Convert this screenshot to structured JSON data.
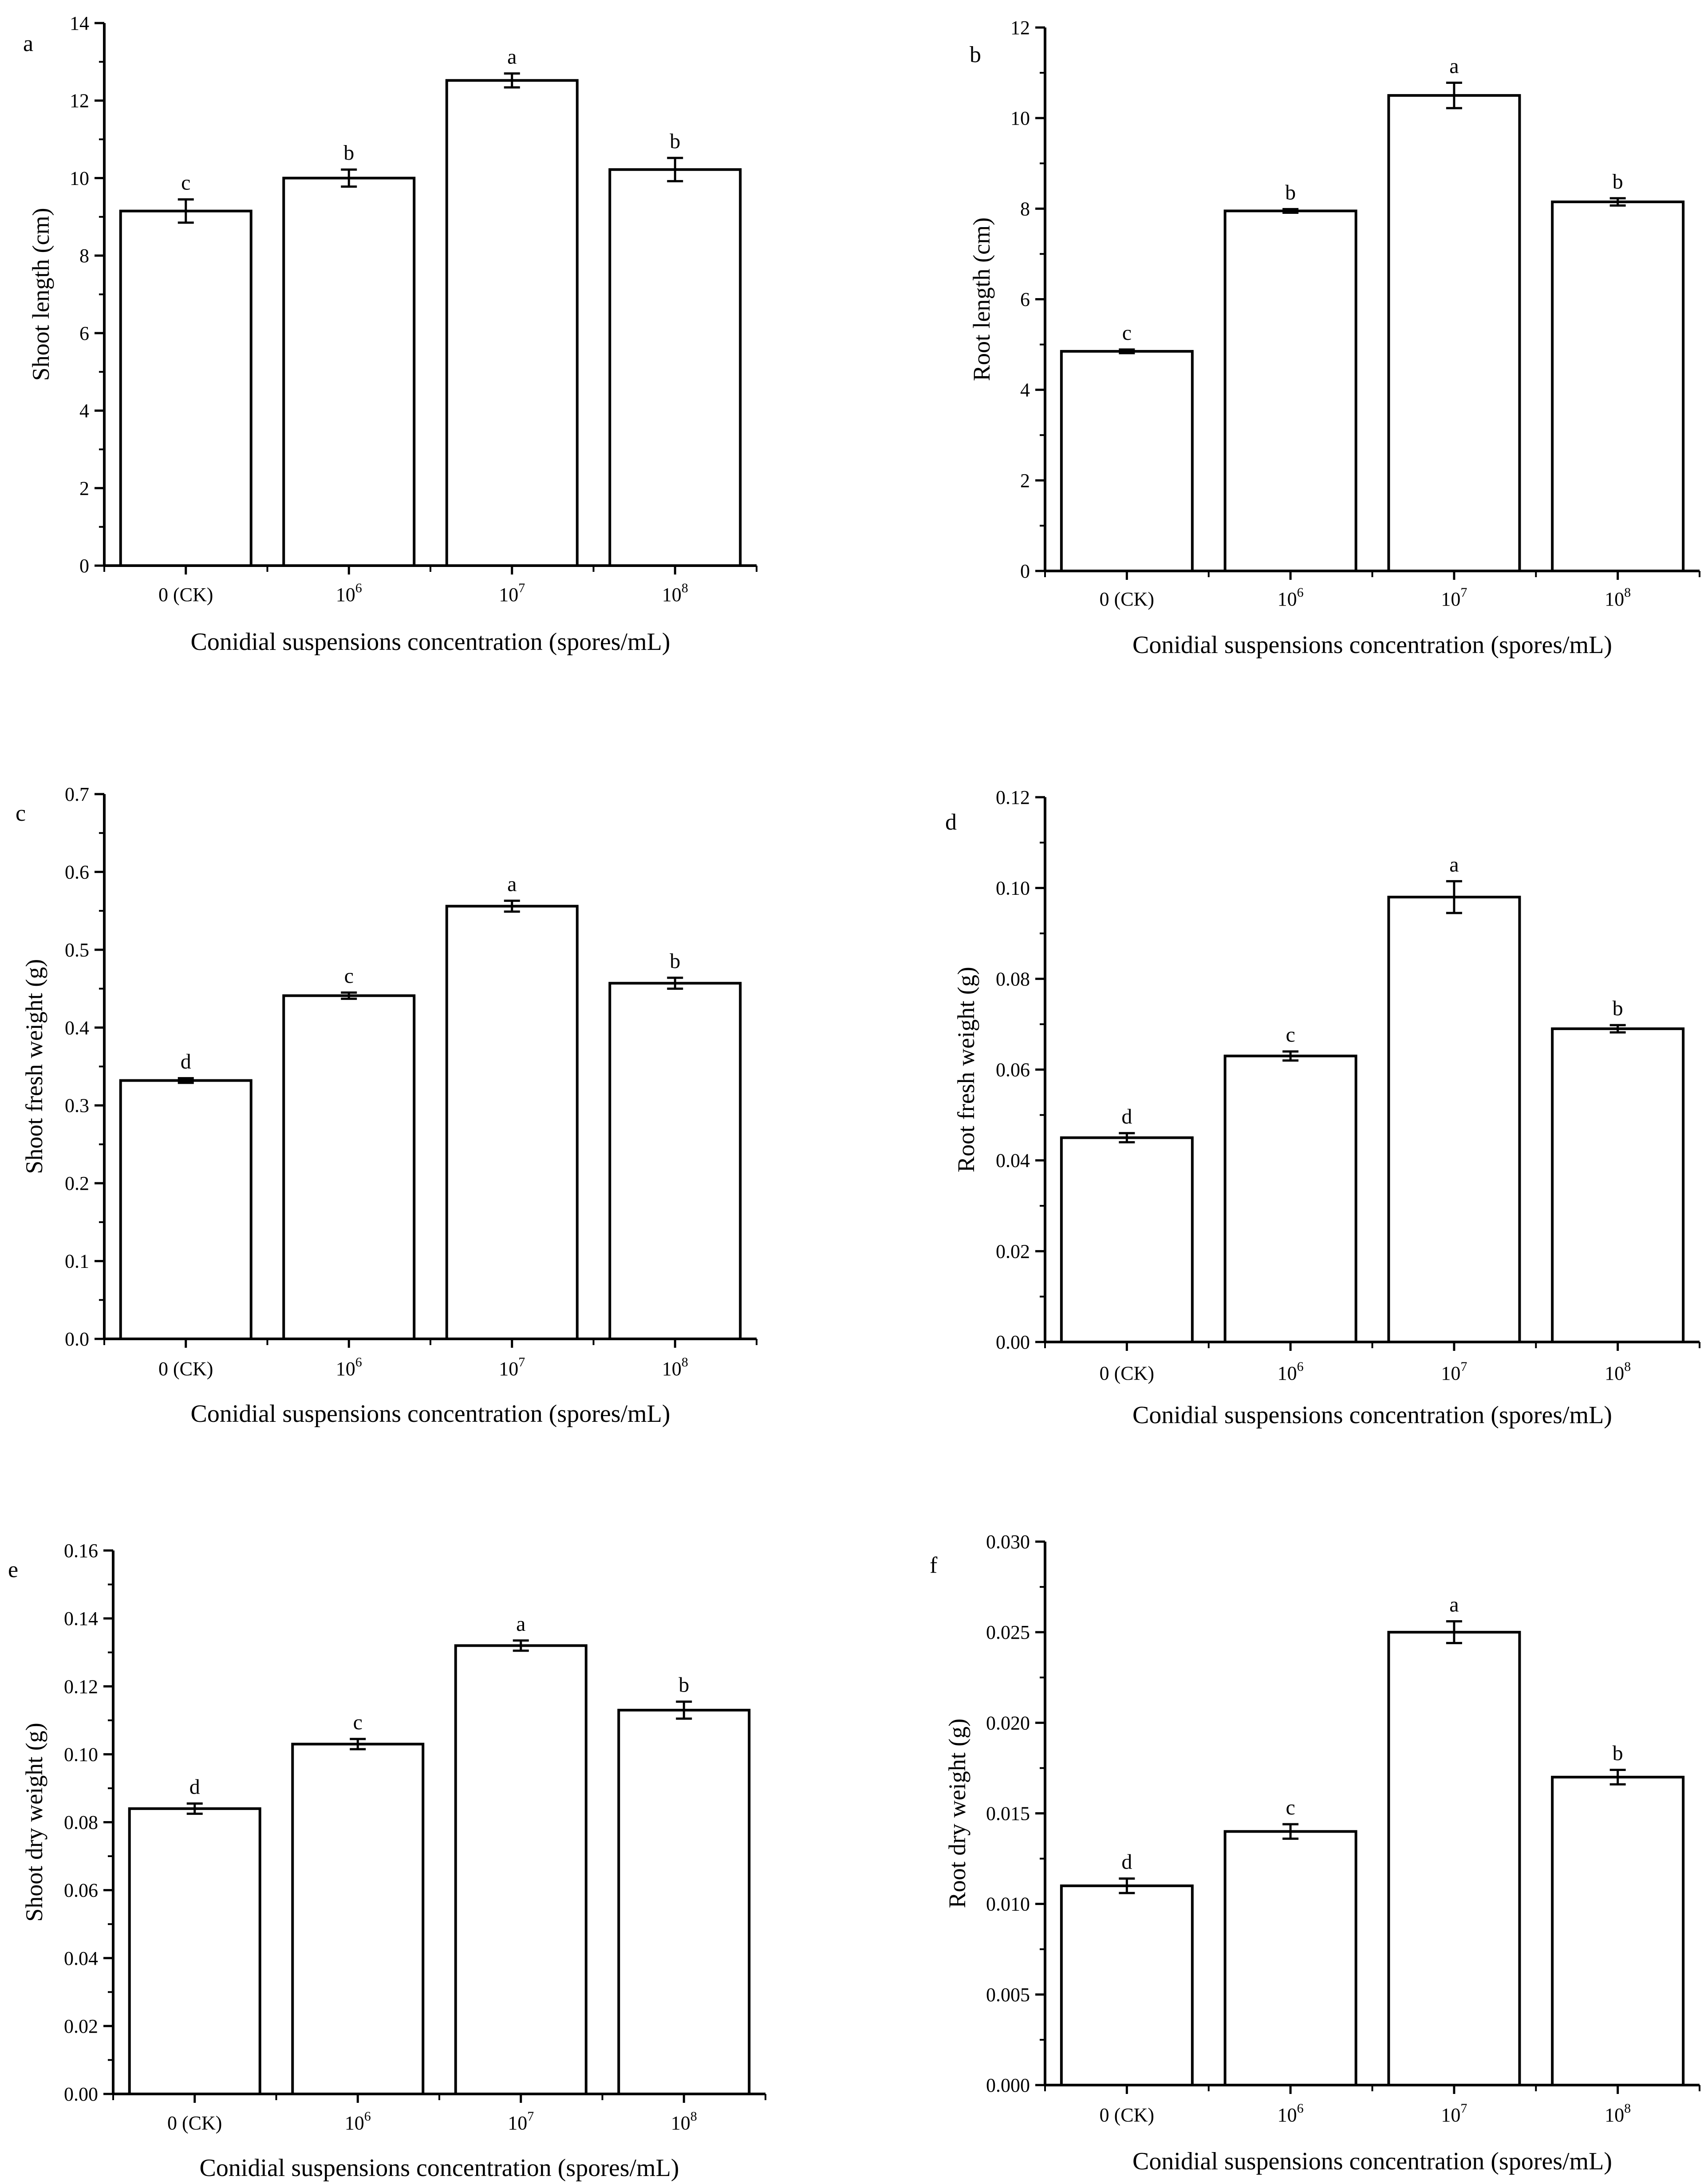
{
  "chart_data": [
    {
      "type": "bar",
      "panel_label": "a",
      "title": "",
      "xlabel": "Conidial suspensions concentration (spores/mL)",
      "ylabel": "Shoot length (cm)",
      "categories": [
        "0 (CK)",
        "10^6",
        "10^7",
        "10^8"
      ],
      "values": [
        9.15,
        10.0,
        12.52,
        10.22
      ],
      "errors": [
        0.3,
        0.22,
        0.18,
        0.3
      ],
      "significance": [
        "c",
        "b",
        "a",
        "b"
      ],
      "ylim": [
        0,
        14
      ],
      "yticks": [
        "0",
        "2",
        "4",
        "6",
        "8",
        "10",
        "12",
        "14"
      ]
    },
    {
      "type": "bar",
      "panel_label": "b",
      "title": "",
      "xlabel": "Conidial suspensions concentration (spores/mL)",
      "ylabel": "Root length (cm)",
      "categories": [
        "0 (CK)",
        "10^6",
        "10^7",
        "10^8"
      ],
      "values": [
        4.85,
        7.95,
        10.5,
        8.15
      ],
      "errors": [
        0.04,
        0.04,
        0.28,
        0.08
      ],
      "significance": [
        "c",
        "b",
        "a",
        "b"
      ],
      "ylim": [
        0,
        12
      ],
      "yticks": [
        "0",
        "2",
        "4",
        "6",
        "8",
        "10",
        "12"
      ]
    },
    {
      "type": "bar",
      "panel_label": "c",
      "title": "",
      "xlabel": "Conidial suspensions concentration (spores/mL)",
      "ylabel": "Shoot fresh weight (g)",
      "categories": [
        "0 (CK)",
        "10^6",
        "10^7",
        "10^8"
      ],
      "values": [
        0.332,
        0.441,
        0.556,
        0.457
      ],
      "errors": [
        0.003,
        0.004,
        0.007,
        0.007
      ],
      "significance": [
        "d",
        "c",
        "a",
        "b"
      ],
      "ylim": [
        0,
        0.7
      ],
      "yticks": [
        "0.0",
        "0.1",
        "0.2",
        "0.3",
        "0.4",
        "0.5",
        "0.6",
        "0.7"
      ]
    },
    {
      "type": "bar",
      "panel_label": "d",
      "title": "",
      "xlabel": "Conidial suspensions concentration (spores/mL)",
      "ylabel": "Root fresh weight (g)",
      "categories": [
        "0 (CK)",
        "10^6",
        "10^7",
        "10^8"
      ],
      "values": [
        0.045,
        0.063,
        0.098,
        0.069
      ],
      "errors": [
        0.001,
        0.001,
        0.0035,
        0.0008
      ],
      "significance": [
        "d",
        "c",
        "a",
        "b"
      ],
      "ylim": [
        0,
        0.12
      ],
      "yticks": [
        "0.00",
        "0.02",
        "0.04",
        "0.06",
        "0.08",
        "0.10",
        "0.12"
      ]
    },
    {
      "type": "bar",
      "panel_label": "e",
      "title": "",
      "xlabel": "Conidial suspensions concentration (spores/mL)",
      "ylabel": "Shoot dry weight (g)",
      "categories": [
        "0 (CK)",
        "10^6",
        "10^7",
        "10^8"
      ],
      "values": [
        0.084,
        0.103,
        0.132,
        0.113
      ],
      "errors": [
        0.0015,
        0.0015,
        0.0015,
        0.0025
      ],
      "significance": [
        "d",
        "c",
        "a",
        "b"
      ],
      "ylim": [
        0,
        0.16
      ],
      "yticks": [
        "0.00",
        "0.02",
        "0.04",
        "0.06",
        "0.08",
        "0.10",
        "0.12",
        "0.14",
        "0.16"
      ]
    },
    {
      "type": "bar",
      "panel_label": "f",
      "title": "",
      "xlabel": "Conidial suspensions concentration (spores/mL)",
      "ylabel": "Root dry weight (g)",
      "categories": [
        "0 (CK)",
        "10^6",
        "10^7",
        "10^8"
      ],
      "values": [
        0.011,
        0.014,
        0.025,
        0.017
      ],
      "errors": [
        0.0004,
        0.0004,
        0.0006,
        0.0004
      ],
      "significance": [
        "d",
        "c",
        "a",
        "b"
      ],
      "ylim": [
        0,
        0.03
      ],
      "yticks": [
        "0.000",
        "0.005",
        "0.010",
        "0.015",
        "0.020",
        "0.025",
        "0.030"
      ]
    }
  ],
  "tick_label_parts": {
    "ck": "0 (CK)",
    "base": "10",
    "exponents": [
      "6",
      "7",
      "8"
    ]
  }
}
